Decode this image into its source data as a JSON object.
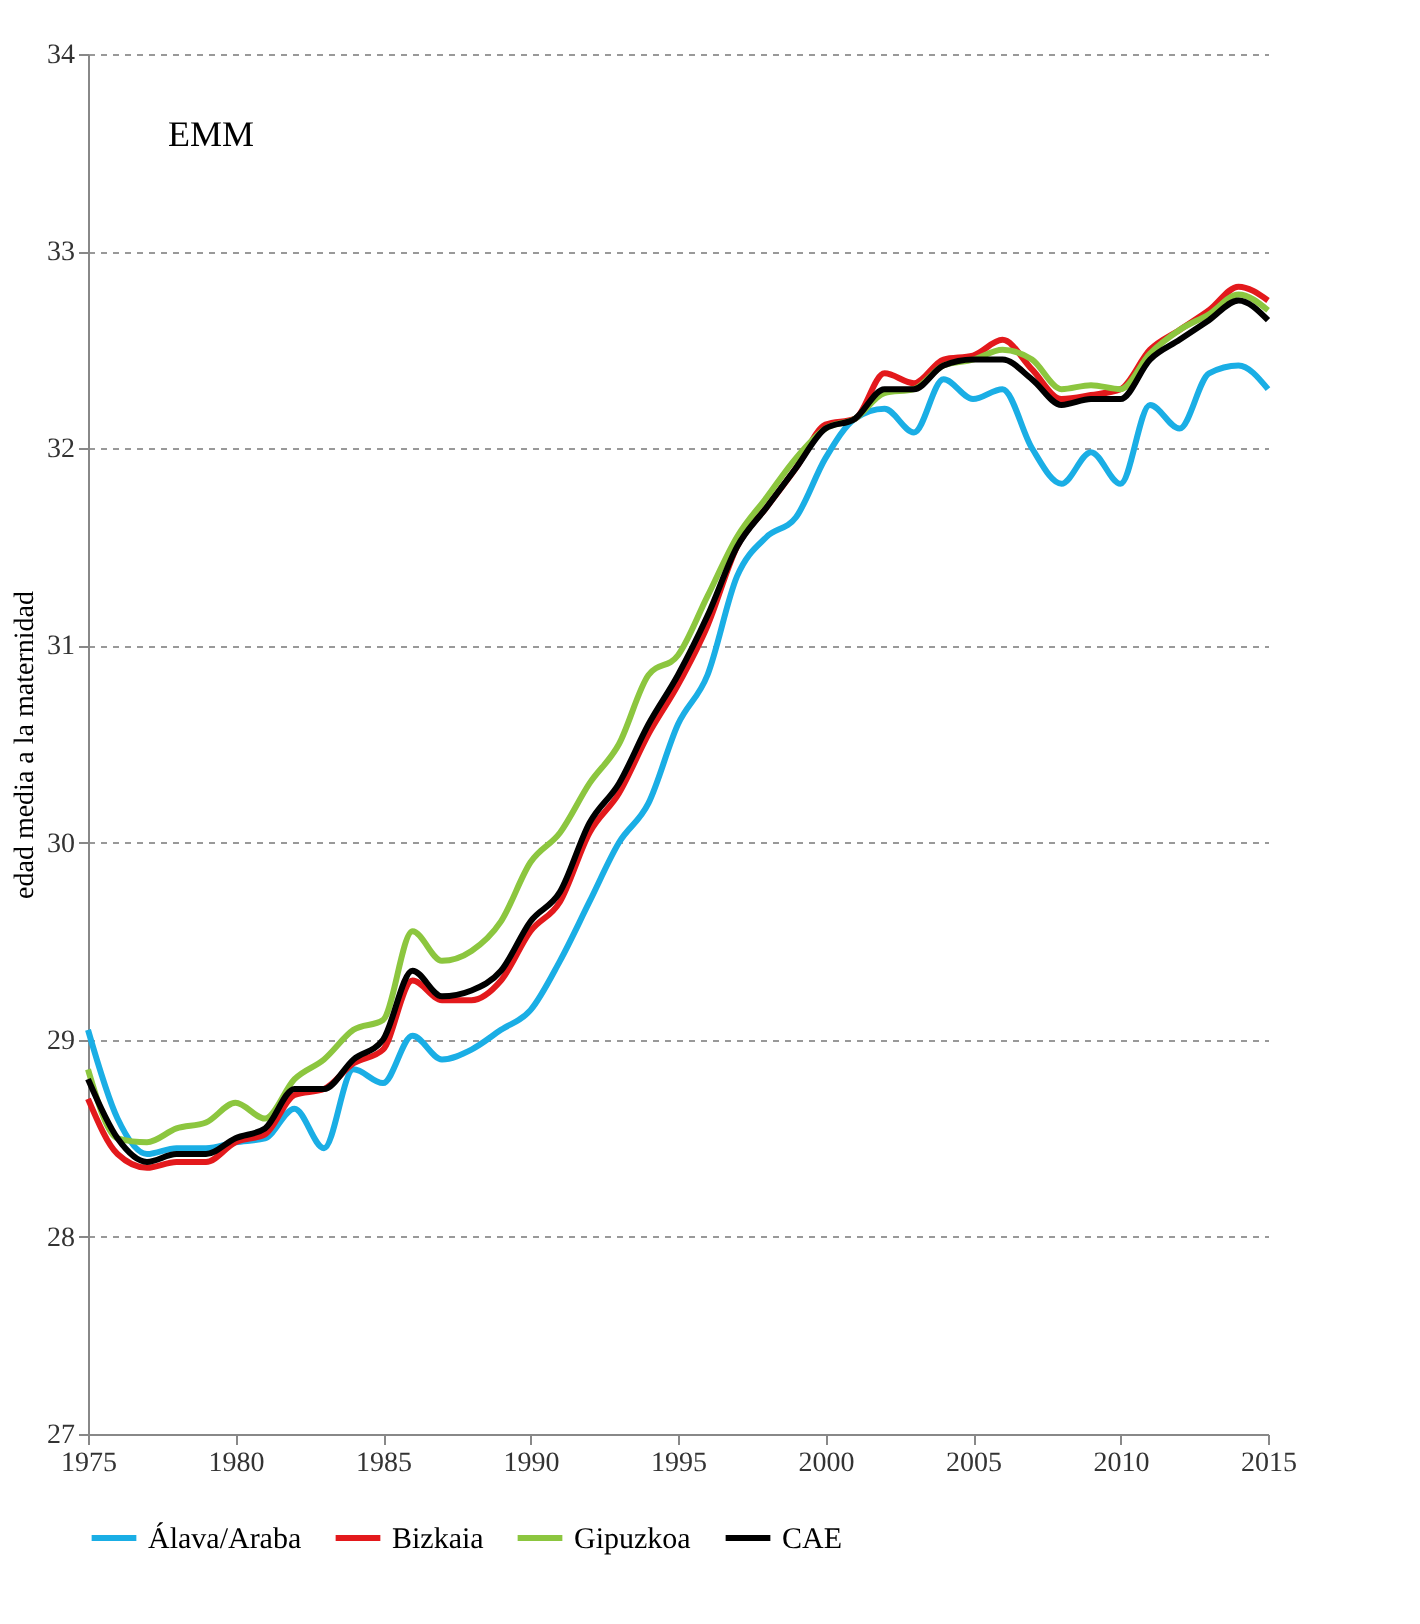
{
  "chart_data": {
    "type": "line",
    "ylabel": "edad media a la maternidad",
    "annotations": [
      "EMM"
    ],
    "x": [
      1975,
      1976,
      1977,
      1978,
      1979,
      1980,
      1981,
      1982,
      1983,
      1984,
      1985,
      1986,
      1987,
      1988,
      1989,
      1990,
      1991,
      1992,
      1993,
      1994,
      1995,
      1996,
      1997,
      1998,
      1999,
      2000,
      2001,
      2002,
      2003,
      2004,
      2005,
      2006,
      2007,
      2008,
      2009,
      2010,
      2011,
      2012,
      2013,
      2014,
      2015
    ],
    "series": [
      {
        "name": "Álava/Araba",
        "color": "#1aaee5",
        "values": [
          29.05,
          28.6,
          28.42,
          28.45,
          28.45,
          28.48,
          28.5,
          28.65,
          28.45,
          28.85,
          28.78,
          29.02,
          28.9,
          28.95,
          29.05,
          29.15,
          29.4,
          29.7,
          30.0,
          30.2,
          30.6,
          30.85,
          31.35,
          31.55,
          31.65,
          31.95,
          32.15,
          32.2,
          32.08,
          32.35,
          32.25,
          32.3,
          32.0,
          31.82,
          31.98,
          31.82,
          32.22,
          32.1,
          32.38,
          32.42,
          32.3
        ]
      },
      {
        "name": "Bizkaia",
        "color": "#e3191c",
        "values": [
          28.7,
          28.42,
          28.35,
          28.38,
          28.38,
          28.48,
          28.52,
          28.72,
          28.75,
          28.88,
          28.95,
          29.3,
          29.2,
          29.2,
          29.3,
          29.55,
          29.7,
          30.05,
          30.25,
          30.55,
          30.8,
          31.1,
          31.5,
          31.7,
          31.9,
          32.12,
          32.15,
          32.38,
          32.33,
          32.45,
          32.47,
          32.55,
          32.4,
          32.25,
          32.27,
          32.3,
          32.5,
          32.6,
          32.7,
          32.82,
          32.75
        ]
      },
      {
        "name": "Gipuzkoa",
        "color": "#8cc63f",
        "values": [
          28.85,
          28.5,
          28.48,
          28.55,
          28.58,
          28.68,
          28.6,
          28.8,
          28.9,
          29.05,
          29.1,
          29.55,
          29.4,
          29.45,
          29.6,
          29.9,
          30.05,
          30.3,
          30.5,
          30.85,
          30.95,
          31.25,
          31.55,
          31.75,
          31.95,
          32.1,
          32.15,
          32.28,
          32.3,
          32.42,
          32.45,
          32.5,
          32.45,
          32.3,
          32.32,
          32.3,
          32.48,
          32.6,
          32.68,
          32.78,
          32.7
        ]
      },
      {
        "name": "CAE",
        "color": "#000000",
        "values": [
          28.8,
          28.5,
          28.38,
          28.42,
          28.42,
          28.5,
          28.55,
          28.75,
          28.75,
          28.9,
          29.0,
          29.35,
          29.22,
          29.25,
          29.35,
          29.6,
          29.75,
          30.1,
          30.3,
          30.6,
          30.85,
          31.15,
          31.5,
          31.7,
          31.9,
          32.1,
          32.15,
          32.3,
          32.3,
          32.42,
          32.45,
          32.45,
          32.35,
          32.22,
          32.25,
          32.25,
          32.45,
          32.55,
          32.65,
          32.75,
          32.65
        ]
      }
    ],
    "xlim": [
      1975,
      2015
    ],
    "xticks": [
      1975,
      1980,
      1985,
      1990,
      1995,
      2000,
      2005,
      2010,
      2015
    ],
    "ylim": [
      27,
      34
    ],
    "yticks": [
      27,
      28,
      29,
      30,
      31,
      32,
      33,
      34
    ],
    "grid": "y",
    "legend": "bottom",
    "marker": "none",
    "line_style": "solid"
  }
}
